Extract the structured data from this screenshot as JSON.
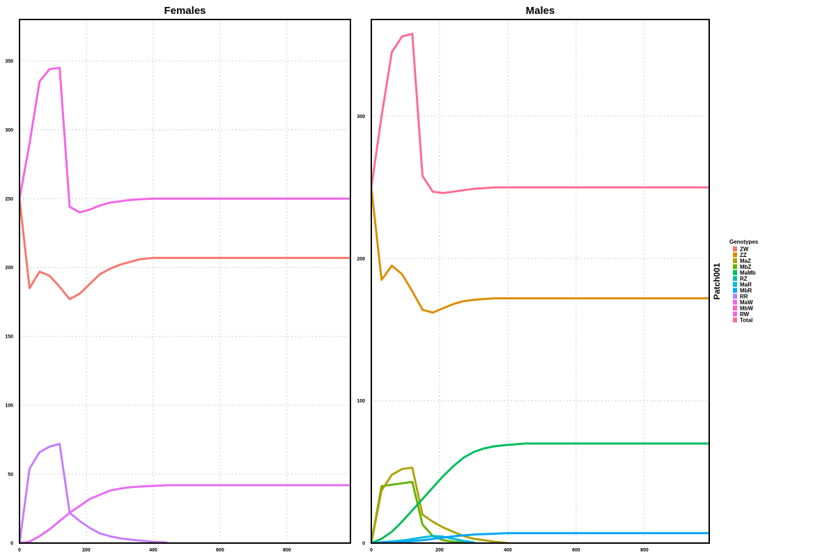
{
  "strip_label": "Patch001",
  "legend": {
    "title": "Genotypes",
    "items": [
      {
        "label": "ZW",
        "color": "#F8766D"
      },
      {
        "label": "ZZ",
        "color": "#DB8E00"
      },
      {
        "label": "MaZ",
        "color": "#AEA200"
      },
      {
        "label": "MbZ",
        "color": "#64B200"
      },
      {
        "label": "MaMb",
        "color": "#00BD5C"
      },
      {
        "label": "RZ",
        "color": "#00C1A7"
      },
      {
        "label": "MaR",
        "color": "#00BADE"
      },
      {
        "label": "MbR",
        "color": "#00A6FF"
      },
      {
        "label": "RR",
        "color": "#B385FF"
      },
      {
        "label": "MaW",
        "color": "#EF67EB"
      },
      {
        "label": "MbW",
        "color": "#FF63B6"
      },
      {
        "label": "RW",
        "color": "#F564E3"
      },
      {
        "label": "Total",
        "color": "#FF6C91"
      }
    ]
  },
  "chart_data": [
    {
      "type": "line",
      "title": "Females",
      "xlabel": "",
      "ylabel": "",
      "xlim": [
        0,
        990
      ],
      "ylim": [
        0,
        380
      ],
      "x_ticks": [
        0,
        200,
        400,
        600,
        800
      ],
      "y_ticks": [
        0,
        50,
        100,
        150,
        200,
        250,
        300,
        350
      ],
      "grid": true,
      "series": [
        {
          "color": "#F564E3",
          "x": [
            0,
            30,
            60,
            90,
            120,
            150,
            180,
            210,
            240,
            270,
            300,
            330,
            360,
            400,
            450,
            500,
            600,
            700,
            800,
            990
          ],
          "y": [
            250,
            290,
            335,
            344,
            345,
            244,
            240,
            242,
            245,
            247,
            248,
            249,
            249.5,
            250,
            250,
            250,
            250,
            250,
            250,
            250
          ]
        },
        {
          "color": "#F8766D",
          "x": [
            0,
            30,
            60,
            90,
            120,
            150,
            180,
            210,
            240,
            270,
            300,
            330,
            360,
            400,
            450,
            500,
            600,
            700,
            800,
            990
          ],
          "y": [
            250,
            185,
            197,
            194,
            186,
            177,
            181,
            188,
            195,
            199,
            202,
            204,
            206,
            207,
            207,
            207,
            207,
            207,
            207,
            207
          ]
        },
        {
          "color": "#C77CFF",
          "x": [
            0,
            30,
            60,
            90,
            120,
            150,
            180,
            210,
            240,
            270,
            300,
            350,
            400,
            440
          ],
          "y": [
            0,
            54,
            66,
            70,
            72,
            22,
            16,
            11,
            7,
            5,
            3.5,
            2,
            1,
            0.5
          ]
        },
        {
          "color": "#E76BF3",
          "x": [
            0,
            30,
            60,
            90,
            120,
            150,
            180,
            210,
            240,
            270,
            300,
            330,
            360,
            400,
            450,
            500,
            600,
            700,
            800,
            990
          ],
          "y": [
            0,
            1,
            5,
            10,
            16,
            22,
            27,
            32,
            35,
            38,
            39.5,
            40.5,
            41,
            41.5,
            42,
            42,
            42,
            42,
            42,
            42
          ]
        }
      ]
    },
    {
      "type": "line",
      "title": "Males",
      "xlabel": "",
      "ylabel": "",
      "xlim": [
        0,
        990
      ],
      "ylim": [
        0,
        368
      ],
      "x_ticks": [
        0,
        200,
        400,
        600,
        800
      ],
      "y_ticks": [
        0,
        100,
        200,
        300
      ],
      "grid": true,
      "series": [
        {
          "color": "#FF6C91",
          "x": [
            0,
            30,
            60,
            90,
            120,
            150,
            180,
            210,
            240,
            270,
            300,
            330,
            360,
            400,
            450,
            500,
            600,
            700,
            800,
            990
          ],
          "y": [
            250,
            300,
            345,
            356,
            358,
            258,
            247,
            246,
            247,
            248,
            249,
            249.5,
            250,
            250,
            250,
            250,
            250,
            250,
            250,
            250
          ]
        },
        {
          "color": "#DB8E00",
          "x": [
            0,
            30,
            60,
            90,
            120,
            150,
            180,
            210,
            240,
            270,
            300,
            330,
            360,
            400,
            450,
            500,
            600,
            700,
            800,
            990
          ],
          "y": [
            250,
            185,
            195,
            189,
            177,
            164,
            162,
            165,
            168,
            170,
            171,
            171.5,
            172,
            172,
            172,
            172,
            172,
            172,
            172,
            172
          ]
        },
        {
          "color": "#64B200",
          "x": [
            0,
            30,
            60,
            90,
            120,
            150,
            180,
            210,
            240,
            270,
            300
          ],
          "y": [
            0,
            40,
            41,
            42,
            43,
            13,
            5,
            2,
            1,
            0.5,
            0
          ]
        },
        {
          "color": "#AEA200",
          "x": [
            0,
            30,
            60,
            90,
            120,
            150,
            180,
            210,
            240,
            270,
            300,
            330,
            360,
            400
          ],
          "y": [
            0,
            37,
            48,
            52,
            53,
            20,
            15,
            11,
            8,
            5,
            3,
            2,
            1,
            0
          ]
        },
        {
          "color": "#00BD5C",
          "x": [
            0,
            30,
            60,
            90,
            120,
            150,
            180,
            210,
            240,
            270,
            300,
            330,
            360,
            400,
            450,
            500,
            600,
            700,
            800,
            990
          ],
          "y": [
            0,
            3,
            8,
            15,
            23,
            31,
            39,
            47,
            54,
            60,
            64,
            66.5,
            68,
            69,
            70,
            70,
            70,
            70,
            70,
            70
          ]
        },
        {
          "color": "#00BADE",
          "x": [
            0,
            50,
            100,
            150,
            180,
            210,
            240,
            270,
            300
          ],
          "y": [
            0,
            1,
            2,
            4,
            5,
            4.5,
            3,
            1.5,
            0.5
          ]
        },
        {
          "color": "#00A6FF",
          "x": [
            0,
            50,
            100,
            150,
            200,
            250,
            300,
            350,
            400,
            450,
            500,
            600,
            700,
            800,
            990
          ],
          "y": [
            0,
            0.5,
            1,
            2,
            3.5,
            5,
            6,
            6.5,
            7,
            7,
            7,
            7,
            7,
            7,
            7
          ]
        }
      ]
    }
  ]
}
